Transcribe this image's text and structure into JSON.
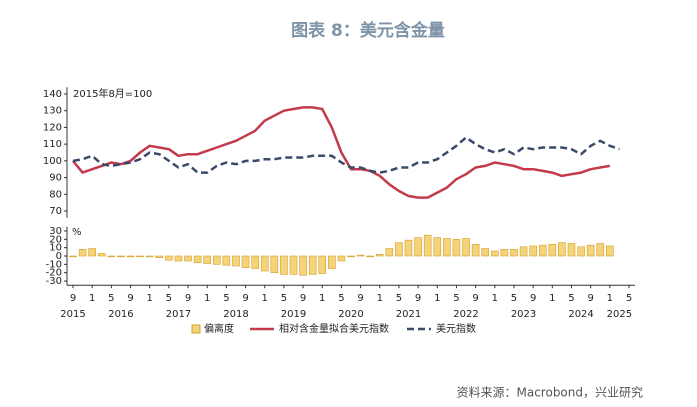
{
  "chart_data": [
    {
      "type": "line",
      "title": "图表 8：美元含金量",
      "note": "2015年8月=100",
      "x": [
        "2015-09",
        "2015-11",
        "2016-01",
        "2016-03",
        "2016-05",
        "2016-07",
        "2016-09",
        "2016-11",
        "2017-01",
        "2017-03",
        "2017-05",
        "2017-07",
        "2017-09",
        "2017-11",
        "2018-01",
        "2018-03",
        "2018-05",
        "2018-07",
        "2018-09",
        "2018-11",
        "2019-01",
        "2019-03",
        "2019-05",
        "2019-07",
        "2019-09",
        "2019-11",
        "2020-01",
        "2020-03",
        "2020-05",
        "2020-07",
        "2020-09",
        "2020-11",
        "2021-01",
        "2021-03",
        "2021-05",
        "2021-07",
        "2021-09",
        "2021-11",
        "2022-01",
        "2022-03",
        "2022-05",
        "2022-07",
        "2022-09",
        "2022-11",
        "2023-01",
        "2023-03",
        "2023-05",
        "2023-07",
        "2023-09",
        "2023-11",
        "2024-01",
        "2024-03",
        "2024-05",
        "2024-07",
        "2024-09",
        "2024-11",
        "2025-01",
        "2025-03",
        "2025-05"
      ],
      "xlim": [
        "2015-09",
        "2025-05"
      ],
      "ylim": [
        66,
        144
      ],
      "yticks": [
        70,
        80,
        90,
        100,
        110,
        120,
        130,
        140
      ],
      "series": [
        {
          "name": "相对含金量拟合美元指数",
          "color": "#c23a4c",
          "style": "solid",
          "values": [
            100,
            93,
            95,
            97,
            99,
            98,
            100,
            105,
            109,
            108,
            107,
            103,
            104,
            104,
            106,
            108,
            110,
            112,
            115,
            118,
            124,
            127,
            130,
            131,
            132,
            132,
            131,
            120,
            105,
            95,
            95,
            94,
            91,
            86,
            82,
            79,
            78,
            78,
            81,
            84,
            89,
            92,
            96,
            97,
            99,
            98,
            97,
            95,
            95,
            94,
            93,
            91,
            92,
            93,
            95,
            96,
            97,
            null,
            null
          ]
        },
        {
          "name": "美元指数",
          "color": "#3b4a6b",
          "style": "dashed",
          "values": [
            100,
            101,
            103,
            98,
            97,
            98,
            99,
            101,
            105,
            104,
            100,
            96,
            98,
            93,
            93,
            97,
            99,
            98,
            100,
            100,
            101,
            101,
            102,
            102,
            102,
            103,
            103,
            103,
            99,
            96,
            96,
            94,
            93,
            94,
            96,
            96,
            99,
            99,
            101,
            105,
            109,
            114,
            110,
            107,
            105,
            107,
            104,
            108,
            107,
            108,
            108,
            108,
            107,
            104,
            109,
            112,
            109,
            107,
            null
          ]
        }
      ]
    },
    {
      "type": "bar",
      "unit": "%",
      "source": "资料来源：Macrobond，兴业研究",
      "x": [
        "2015-09",
        "2015-11",
        "2016-01",
        "2016-03",
        "2016-05",
        "2016-07",
        "2016-09",
        "2016-11",
        "2017-01",
        "2017-03",
        "2017-05",
        "2017-07",
        "2017-09",
        "2017-11",
        "2018-01",
        "2018-03",
        "2018-05",
        "2018-07",
        "2018-09",
        "2018-11",
        "2019-01",
        "2019-03",
        "2019-05",
        "2019-07",
        "2019-09",
        "2019-11",
        "2020-01",
        "2020-03",
        "2020-05",
        "2020-07",
        "2020-09",
        "2020-11",
        "2021-01",
        "2021-03",
        "2021-05",
        "2021-07",
        "2021-09",
        "2021-11",
        "2022-01",
        "2022-03",
        "2022-05",
        "2022-07",
        "2022-09",
        "2022-11",
        "2023-01",
        "2023-03",
        "2023-05",
        "2023-07",
        "2023-09",
        "2023-11",
        "2024-01",
        "2024-03",
        "2024-05",
        "2024-07",
        "2024-09",
        "2024-11",
        "2025-01",
        "2025-03",
        "2025-05"
      ],
      "xlim": [
        "2015-09",
        "2025-05"
      ],
      "ylim": [
        -35,
        35
      ],
      "yticks": [
        -30,
        -20,
        -10,
        0,
        10,
        20,
        30
      ],
      "xticks": [
        {
          "value": "2015-09",
          "label": "9"
        },
        {
          "value": "2016-01",
          "label": "1"
        },
        {
          "value": "2016-05",
          "label": "5"
        },
        {
          "value": "2016-09",
          "label": "9"
        },
        {
          "value": "2017-01",
          "label": "1"
        },
        {
          "value": "2017-05",
          "label": "5"
        },
        {
          "value": "2017-09",
          "label": "9"
        },
        {
          "value": "2018-01",
          "label": "1"
        },
        {
          "value": "2018-05",
          "label": "5"
        },
        {
          "value": "2018-09",
          "label": "9"
        },
        {
          "value": "2019-01",
          "label": "1"
        },
        {
          "value": "2019-05",
          "label": "5"
        },
        {
          "value": "2019-09",
          "label": "9"
        },
        {
          "value": "2020-01",
          "label": "1"
        },
        {
          "value": "2020-05",
          "label": "5"
        },
        {
          "value": "2020-09",
          "label": "9"
        },
        {
          "value": "2021-01",
          "label": "1"
        },
        {
          "value": "2021-05",
          "label": "5"
        },
        {
          "value": "2021-09",
          "label": "9"
        },
        {
          "value": "2022-01",
          "label": "1"
        },
        {
          "value": "2022-05",
          "label": "5"
        },
        {
          "value": "2022-09",
          "label": "9"
        },
        {
          "value": "2023-01",
          "label": "1"
        },
        {
          "value": "2023-05",
          "label": "5"
        },
        {
          "value": "2023-09",
          "label": "9"
        },
        {
          "value": "2024-01",
          "label": "1"
        },
        {
          "value": "2024-05",
          "label": "5"
        },
        {
          "value": "2024-09",
          "label": "9"
        },
        {
          "value": "2025-01",
          "label": "1"
        },
        {
          "value": "2025-05",
          "label": "5"
        }
      ],
      "year_labels": [
        {
          "value": "2015-09",
          "label": "2015"
        },
        {
          "value": "2016-07",
          "label": "2016"
        },
        {
          "value": "2017-07",
          "label": "2017"
        },
        {
          "value": "2018-07",
          "label": "2018"
        },
        {
          "value": "2019-07",
          "label": "2019"
        },
        {
          "value": "2020-07",
          "label": "2020"
        },
        {
          "value": "2021-07",
          "label": "2021"
        },
        {
          "value": "2022-07",
          "label": "2022"
        },
        {
          "value": "2023-07",
          "label": "2023"
        },
        {
          "value": "2024-07",
          "label": "2024"
        },
        {
          "value": "2025-03",
          "label": "2025"
        }
      ],
      "series": [
        {
          "name": "偏离度",
          "color": "#f5d37a",
          "edge": "#d4a02a",
          "values": [
            0,
            8,
            9,
            3,
            0,
            -1,
            -1,
            -1,
            -1,
            -2,
            -5,
            -6,
            -6,
            -8,
            -9,
            -10,
            -11,
            -12,
            -14,
            -15,
            -18,
            -20,
            -22,
            -22,
            -23,
            -22,
            -21,
            -15,
            -6,
            0,
            1,
            0,
            2,
            9,
            16,
            19,
            22,
            25,
            22,
            21,
            20,
            21,
            14,
            9,
            6,
            8,
            8,
            11,
            12,
            13,
            14,
            16,
            15,
            11,
            13,
            15,
            12,
            null,
            null
          ]
        }
      ]
    }
  ]
}
